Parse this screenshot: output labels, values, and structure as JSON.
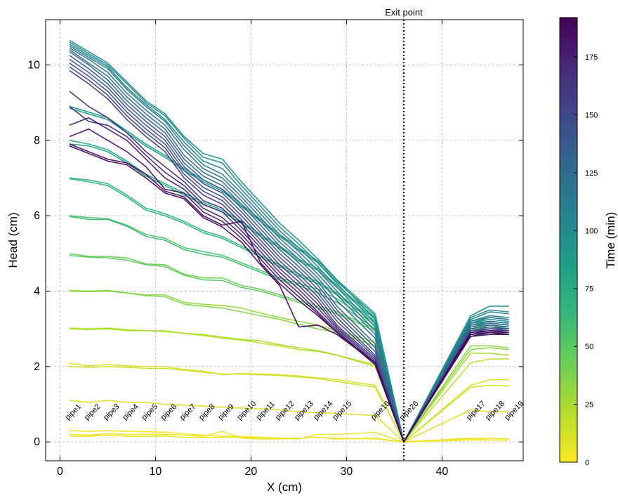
{
  "chart_data": {
    "type": "line",
    "xlabel": "X (cm)",
    "ylabel": "Head (cm)",
    "xlim": [
      -1.5,
      48.5
    ],
    "ylim": [
      -0.5,
      11.2
    ],
    "x_ticks": [
      0,
      10,
      20,
      30,
      40
    ],
    "y_ticks": [
      0,
      2,
      4,
      6,
      8,
      10
    ],
    "grid": true,
    "exit_point": {
      "x": 36,
      "label": "Exit point"
    },
    "colorbar": {
      "label": "Time (min)",
      "min": 0,
      "max": 192,
      "ticks": [
        0,
        25,
        50,
        75,
        100,
        125,
        150,
        175
      ],
      "colormap": "viridis",
      "colors": [
        "#fde725",
        "#b5de2b",
        "#6ece58",
        "#35b779",
        "#1f9e89",
        "#26828e",
        "#31688e",
        "#3e4989",
        "#482878",
        "#440154"
      ]
    },
    "pipes": [
      {
        "name": "pipe1",
        "x": 1
      },
      {
        "name": "pipe2",
        "x": 3
      },
      {
        "name": "pipe3",
        "x": 5
      },
      {
        "name": "pipe4",
        "x": 7
      },
      {
        "name": "pipe5",
        "x": 9
      },
      {
        "name": "pipe6",
        "x": 11
      },
      {
        "name": "pipe7",
        "x": 13
      },
      {
        "name": "pipe8",
        "x": 15
      },
      {
        "name": "pipe9",
        "x": 17
      },
      {
        "name": "pipe10",
        "x": 19
      },
      {
        "name": "pipe11",
        "x": 21
      },
      {
        "name": "pipe12",
        "x": 23
      },
      {
        "name": "pipe13",
        "x": 25
      },
      {
        "name": "pipe14",
        "x": 27
      },
      {
        "name": "pipe15",
        "x": 29
      },
      {
        "name": "pipe16",
        "x": 33
      },
      {
        "name": "pipe26",
        "x": 36
      },
      {
        "name": "pipe17",
        "x": 43
      },
      {
        "name": "pipe18",
        "x": 45
      },
      {
        "name": "pipe19",
        "x": 47
      }
    ],
    "x": [
      1,
      3,
      5,
      7,
      9,
      11,
      13,
      15,
      17,
      19,
      21,
      23,
      25,
      27,
      29,
      33,
      36,
      43,
      45,
      47
    ],
    "series": [
      {
        "time": 2,
        "values": [
          0.3,
          0.28,
          0.3,
          0.28,
          0.27,
          0.26,
          0.22,
          0.18,
          0.15,
          0.15,
          0.12,
          0.1,
          0.1,
          0.12,
          0.1,
          0.08,
          0.0,
          0.05,
          0.05,
          0.05
        ]
      },
      {
        "time": 4,
        "values": [
          0.2,
          0.18,
          0.22,
          0.2,
          0.2,
          0.2,
          0.18,
          0.15,
          0.28,
          0.1,
          0.08,
          0.08,
          0.1,
          0.12,
          0.08,
          0.1,
          0.0,
          0.08,
          0.1,
          0.08
        ]
      },
      {
        "time": 6,
        "values": [
          0.15,
          0.15,
          0.18,
          0.15,
          0.15,
          0.16,
          0.12,
          0.12,
          0.12,
          0.12,
          0.1,
          0.1,
          0.08,
          0.2,
          0.2,
          0.25,
          0.0,
          0.1,
          0.05,
          0.05
        ]
      },
      {
        "time": 10,
        "values": [
          1.1,
          1.05,
          1.1,
          1.05,
          1.05,
          1.0,
          0.98,
          0.95,
          0.92,
          0.9,
          0.88,
          0.85,
          0.8,
          0.78,
          0.75,
          0.7,
          0.0,
          0.85,
          0.8,
          0.8
        ]
      },
      {
        "time": 12,
        "values": [
          2.08,
          2.02,
          2.05,
          2.02,
          2.0,
          2.0,
          1.92,
          1.88,
          1.78,
          1.82,
          1.8,
          1.78,
          1.75,
          1.7,
          1.65,
          1.5,
          0.0,
          1.5,
          1.65,
          1.65
        ]
      },
      {
        "time": 14,
        "values": [
          2.0,
          1.98,
          2.0,
          1.98,
          1.95,
          1.95,
          1.9,
          1.85,
          1.8,
          1.8,
          1.78,
          1.76,
          1.72,
          1.68,
          1.6,
          1.45,
          0.0,
          1.45,
          1.5,
          1.48
        ]
      },
      {
        "time": 20,
        "values": [
          3.02,
          3.0,
          3.02,
          2.98,
          2.95,
          2.95,
          2.88,
          2.82,
          2.75,
          2.7,
          2.62,
          2.55,
          2.45,
          2.4,
          2.3,
          2.05,
          0.0,
          2.1,
          2.2,
          2.2
        ]
      },
      {
        "time": 24,
        "values": [
          3.0,
          2.98,
          3.0,
          2.95,
          2.95,
          2.93,
          2.88,
          2.85,
          2.78,
          2.72,
          2.68,
          2.58,
          2.5,
          2.42,
          2.3,
          2.0,
          0.0,
          2.35,
          2.35,
          2.3
        ]
      },
      {
        "time": 32,
        "values": [
          4.02,
          4.0,
          4.02,
          3.95,
          3.9,
          3.9,
          3.7,
          3.65,
          3.62,
          3.55,
          3.42,
          3.3,
          3.2,
          3.1,
          2.95,
          2.65,
          0.0,
          2.55,
          2.55,
          2.5
        ]
      },
      {
        "time": 36,
        "values": [
          4.0,
          3.98,
          4.0,
          3.95,
          3.88,
          3.85,
          3.65,
          3.6,
          3.55,
          3.45,
          3.35,
          3.25,
          3.12,
          3.0,
          2.9,
          2.55,
          0.0,
          2.45,
          2.5,
          2.45
        ]
      },
      {
        "time": 44,
        "values": [
          5.0,
          4.92,
          4.92,
          4.88,
          4.72,
          4.7,
          4.45,
          4.35,
          4.35,
          4.15,
          4.05,
          3.9,
          3.75,
          3.6,
          3.45,
          3.0,
          0.0,
          2.85,
          2.9,
          2.9
        ]
      },
      {
        "time": 48,
        "values": [
          4.95,
          4.9,
          4.88,
          4.82,
          4.7,
          4.65,
          4.42,
          4.3,
          4.28,
          4.1,
          4.0,
          3.85,
          3.7,
          3.55,
          3.4,
          2.95,
          0.0,
          2.8,
          2.85,
          2.85
        ]
      },
      {
        "time": 56,
        "values": [
          6.0,
          5.95,
          5.92,
          5.75,
          5.5,
          5.4,
          5.15,
          5.05,
          4.95,
          4.75,
          4.55,
          4.35,
          4.2,
          4.05,
          3.8,
          3.1,
          0.0,
          3.0,
          3.05,
          3.05
        ]
      },
      {
        "time": 60,
        "values": [
          5.98,
          5.9,
          5.9,
          5.72,
          5.45,
          5.35,
          5.1,
          4.98,
          4.9,
          4.7,
          4.5,
          4.3,
          4.15,
          3.95,
          3.7,
          3.0,
          0.0,
          2.95,
          3.0,
          3.0
        ]
      },
      {
        "time": 66,
        "values": [
          7.0,
          6.95,
          6.85,
          6.55,
          6.2,
          6.05,
          5.85,
          5.6,
          5.45,
          5.2,
          4.95,
          4.7,
          4.45,
          4.25,
          3.95,
          3.2,
          0.0,
          3.1,
          3.15,
          3.1
        ]
      },
      {
        "time": 70,
        "values": [
          6.98,
          6.9,
          6.8,
          6.5,
          6.15,
          6.0,
          5.8,
          5.55,
          5.4,
          5.15,
          4.9,
          4.65,
          4.4,
          4.2,
          3.9,
          3.15,
          0.0,
          3.05,
          3.1,
          3.05
        ]
      },
      {
        "time": 76,
        "values": [
          8.0,
          7.9,
          7.75,
          7.45,
          7.1,
          6.85,
          6.6,
          6.35,
          6.15,
          5.85,
          5.5,
          5.2,
          4.85,
          4.6,
          4.15,
          3.3,
          0.0,
          3.15,
          3.2,
          3.15
        ]
      },
      {
        "time": 80,
        "values": [
          7.9,
          7.85,
          7.7,
          7.4,
          7.05,
          6.8,
          6.55,
          6.3,
          6.1,
          5.8,
          5.45,
          5.15,
          4.8,
          4.55,
          4.1,
          3.25,
          0.0,
          3.1,
          3.15,
          3.1
        ]
      },
      {
        "time": 86,
        "values": [
          8.9,
          8.75,
          8.6,
          8.25,
          7.9,
          7.6,
          7.25,
          6.95,
          6.7,
          6.3,
          5.9,
          5.5,
          5.15,
          4.8,
          4.3,
          3.4,
          0.0,
          3.2,
          3.3,
          3.25
        ]
      },
      {
        "time": 90,
        "values": [
          8.85,
          8.7,
          8.55,
          8.2,
          7.85,
          7.55,
          7.2,
          6.9,
          6.65,
          6.25,
          5.85,
          5.45,
          5.1,
          4.75,
          4.25,
          3.35,
          0.0,
          3.15,
          3.25,
          3.2
        ]
      },
      {
        "time": 96,
        "values": [
          10.65,
          10.35,
          10.05,
          9.55,
          9.05,
          8.7,
          8.1,
          7.65,
          7.5,
          6.9,
          6.35,
          5.8,
          5.35,
          4.85,
          4.3,
          3.25,
          0.0,
          3.35,
          3.6,
          3.6
        ]
      },
      {
        "time": 100,
        "values": [
          10.6,
          10.3,
          10.0,
          9.5,
          9.0,
          8.65,
          8.05,
          7.55,
          7.4,
          6.8,
          6.25,
          5.7,
          5.25,
          4.75,
          4.2,
          3.15,
          0.0,
          3.3,
          3.5,
          3.45
        ]
      },
      {
        "time": 106,
        "values": [
          10.55,
          10.25,
          9.95,
          9.4,
          8.95,
          8.55,
          7.95,
          7.45,
          7.25,
          6.7,
          6.15,
          5.6,
          5.15,
          4.65,
          4.1,
          3.05,
          0.0,
          3.25,
          3.45,
          3.4
        ]
      },
      {
        "time": 112,
        "values": [
          10.5,
          10.2,
          9.9,
          9.35,
          8.9,
          8.5,
          7.85,
          7.35,
          7.1,
          6.6,
          6.05,
          5.5,
          5.05,
          4.55,
          4.0,
          2.95,
          0.0,
          3.2,
          3.35,
          3.3
        ]
      },
      {
        "time": 118,
        "values": [
          10.45,
          10.15,
          9.8,
          9.25,
          8.8,
          8.4,
          7.75,
          7.25,
          7.0,
          6.5,
          5.95,
          5.4,
          4.95,
          4.45,
          3.9,
          2.85,
          0.0,
          3.15,
          3.3,
          3.25
        ]
      },
      {
        "time": 124,
        "values": [
          10.4,
          10.05,
          9.7,
          9.15,
          8.7,
          8.3,
          7.6,
          7.15,
          6.9,
          6.4,
          5.85,
          5.3,
          4.85,
          4.35,
          3.75,
          2.75,
          0.0,
          3.1,
          3.2,
          3.15
        ]
      },
      {
        "time": 130,
        "values": [
          10.35,
          10.0,
          9.6,
          9.05,
          8.6,
          8.2,
          7.5,
          7.05,
          6.8,
          6.3,
          5.75,
          5.2,
          4.75,
          4.25,
          3.6,
          2.6,
          0.0,
          3.05,
          3.15,
          3.1
        ]
      },
      {
        "time": 136,
        "values": [
          10.25,
          9.9,
          9.5,
          8.95,
          8.5,
          8.1,
          7.4,
          6.95,
          6.7,
          6.2,
          5.65,
          5.1,
          4.65,
          4.15,
          3.5,
          2.5,
          0.0,
          3.0,
          3.1,
          3.05
        ]
      },
      {
        "time": 142,
        "values": [
          10.15,
          9.8,
          9.4,
          8.85,
          8.4,
          8.0,
          7.3,
          6.85,
          6.6,
          6.1,
          5.55,
          5.0,
          4.55,
          4.05,
          3.4,
          2.4,
          0.0,
          2.95,
          3.05,
          3.0
        ]
      },
      {
        "time": 148,
        "values": [
          10.05,
          9.7,
          9.3,
          8.75,
          8.3,
          7.9,
          7.2,
          6.75,
          6.5,
          6.0,
          5.45,
          4.9,
          4.45,
          3.95,
          3.3,
          2.3,
          0.0,
          2.95,
          3.0,
          3.0
        ]
      },
      {
        "time": 154,
        "values": [
          9.95,
          9.6,
          9.2,
          8.65,
          8.2,
          7.8,
          7.1,
          6.65,
          6.4,
          5.9,
          5.35,
          4.8,
          4.35,
          3.85,
          3.2,
          2.25,
          0.0,
          2.9,
          3.0,
          2.95
        ]
      },
      {
        "time": 160,
        "values": [
          9.85,
          9.5,
          9.1,
          8.55,
          8.1,
          7.7,
          7.0,
          6.55,
          6.3,
          5.8,
          5.25,
          4.7,
          4.25,
          3.75,
          3.1,
          2.2,
          0.0,
          2.9,
          2.95,
          2.95
        ]
      },
      {
        "time": 165,
        "values": [
          9.3,
          8.9,
          8.6,
          8.2,
          7.7,
          7.3,
          6.9,
          6.4,
          6.2,
          5.7,
          5.15,
          4.6,
          4.15,
          3.65,
          3.05,
          2.15,
          0.0,
          2.85,
          2.95,
          2.9
        ]
      },
      {
        "time": 170,
        "values": [
          8.9,
          8.5,
          8.4,
          8.1,
          7.6,
          7.15,
          6.8,
          6.3,
          6.1,
          5.6,
          5.05,
          4.5,
          4.05,
          3.55,
          3.0,
          2.1,
          0.0,
          2.85,
          2.9,
          2.9
        ]
      },
      {
        "time": 175,
        "values": [
          8.4,
          8.6,
          8.3,
          8.0,
          7.5,
          7.0,
          6.7,
          6.2,
          5.95,
          5.5,
          4.95,
          4.4,
          3.95,
          3.45,
          2.95,
          2.05,
          0.0,
          2.8,
          2.9,
          2.85
        ]
      },
      {
        "time": 180,
        "values": [
          8.1,
          8.3,
          8.0,
          7.7,
          7.3,
          6.7,
          6.6,
          6.1,
          5.85,
          5.4,
          4.85,
          4.3,
          3.85,
          3.4,
          2.9,
          2.05,
          0.0,
          2.8,
          2.85,
          2.85
        ]
      },
      {
        "time": 185,
        "values": [
          7.9,
          7.7,
          7.5,
          7.4,
          7.1,
          6.65,
          6.5,
          6.0,
          5.75,
          5.85,
          4.75,
          4.2,
          3.75,
          3.35,
          2.9,
          2.1,
          0.0,
          2.85,
          2.9,
          2.85
        ]
      },
      {
        "time": 190,
        "values": [
          7.85,
          7.65,
          7.45,
          7.35,
          7.0,
          6.6,
          6.45,
          5.95,
          5.7,
          5.3,
          4.7,
          4.15,
          3.05,
          3.1,
          2.85,
          2.1,
          0.0,
          2.9,
          2.95,
          2.9
        ]
      }
    ]
  }
}
